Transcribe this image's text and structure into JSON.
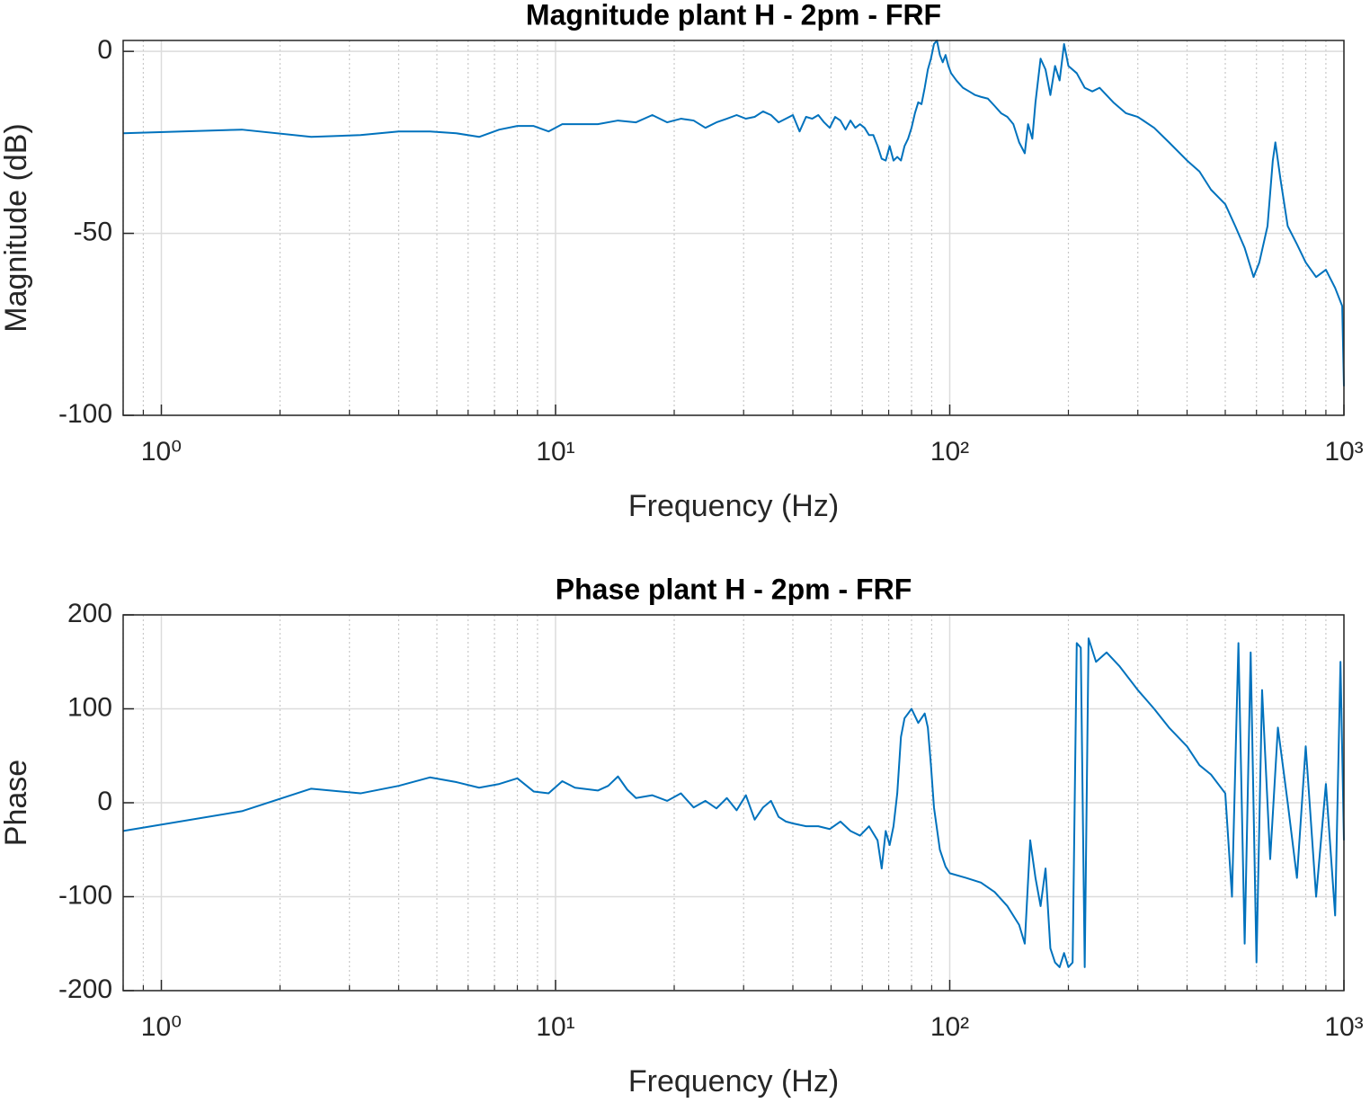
{
  "chart_data": [
    {
      "type": "line",
      "title": "Magnitude plant H - 2pm - FRF",
      "xlabel": "Frequency (Hz)",
      "ylabel": "Magnitude (dB)",
      "xscale": "log",
      "grid": true,
      "color": "#0072bd",
      "xlim": [
        0.8,
        1000
      ],
      "ylim": [
        -100,
        3
      ],
      "xticks": [
        {
          "value": 1,
          "label": "10⁰"
        },
        {
          "value": 10,
          "label": "10¹"
        },
        {
          "value": 100,
          "label": "10²"
        },
        {
          "value": 1000,
          "label": "10³"
        }
      ],
      "xminorticks": [
        0.8,
        0.9,
        2,
        3,
        4,
        5,
        6,
        7,
        8,
        9,
        20,
        30,
        40,
        50,
        60,
        70,
        80,
        90,
        200,
        300,
        400,
        500,
        600,
        700,
        800,
        900
      ],
      "yticks": [
        -100,
        -50,
        0
      ],
      "x": [
        0.8,
        1.6,
        2.4,
        3.2,
        4,
        4.8,
        5.6,
        6.4,
        7.2,
        8,
        8.8,
        9.6,
        10.4,
        11.2,
        12.8,
        14.4,
        16,
        17.6,
        19.2,
        20.8,
        22.4,
        24,
        25.6,
        27.2,
        28.8,
        30.4,
        32,
        33.6,
        35.2,
        36.8,
        38.4,
        40,
        41.6,
        43.2,
        44.8,
        46.4,
        48,
        49.6,
        51.2,
        52.8,
        54.4,
        56,
        57.6,
        59.2,
        60.8,
        62.4,
        64,
        65.6,
        67.2,
        68.8,
        70.4,
        72,
        73.6,
        75.2,
        76.8,
        78.4,
        80,
        81.6,
        83.2,
        84.8,
        86.4,
        88,
        89.6,
        91.2,
        92.8,
        94.4,
        96,
        97.6,
        99.2,
        100.8,
        104,
        108,
        112,
        116,
        120,
        125,
        130,
        135,
        140,
        145,
        150,
        155,
        158,
        162,
        165,
        170,
        175,
        180,
        185,
        190,
        195,
        200,
        210,
        220,
        230,
        240,
        260,
        280,
        300,
        330,
        360,
        400,
        430,
        460,
        500,
        530,
        560,
        590,
        610,
        640,
        660,
        670,
        690,
        720,
        760,
        800,
        850,
        900,
        950,
        990,
        1000
      ],
      "values": [
        -22.5,
        -21.5,
        -23.5,
        -23,
        -22,
        -22,
        -22.5,
        -23.5,
        -21.5,
        -20.5,
        -20.5,
        -22,
        -20,
        -20,
        -20,
        -19,
        -19.5,
        -17.5,
        -19.5,
        -18.5,
        -19,
        -21,
        -19.5,
        -18.5,
        -17.5,
        -18.5,
        -18,
        -16.5,
        -17.5,
        -19.5,
        -18.5,
        -17.5,
        -22,
        -18,
        -18.5,
        -17.5,
        -19.5,
        -21,
        -18,
        -19,
        -21.5,
        -19,
        -21,
        -20,
        -21,
        -23,
        -23,
        -26,
        -29.5,
        -30,
        -26,
        -30,
        -29,
        -30,
        -26,
        -24,
        -21,
        -17,
        -14,
        -14.5,
        -10,
        -5,
        -2,
        2,
        3,
        -1,
        -3,
        -1,
        -4,
        -6,
        -8,
        -10,
        -11,
        -12,
        -12.5,
        -13,
        -15,
        -17,
        -18,
        -20,
        -25,
        -28,
        -20,
        -24,
        -14,
        -2,
        -5,
        -12,
        -4,
        -8,
        2,
        -4,
        -6,
        -10,
        -11,
        -10,
        -14,
        -17,
        -18,
        -21,
        -25,
        -30,
        -33,
        -38,
        -42,
        -48,
        -54,
        -62,
        -58,
        -48,
        -30,
        -25,
        -35,
        -48,
        -53,
        -58,
        -62,
        -60,
        -65,
        -70,
        -92
      ]
    },
    {
      "type": "line",
      "title": "Phase plant H - 2pm - FRF",
      "xlabel": "Frequency (Hz)",
      "ylabel": "Phase",
      "xscale": "log",
      "grid": true,
      "color": "#0072bd",
      "xlim": [
        0.8,
        1000
      ],
      "ylim": [
        -200,
        200
      ],
      "xticks": [
        {
          "value": 1,
          "label": "10⁰"
        },
        {
          "value": 10,
          "label": "10¹"
        },
        {
          "value": 100,
          "label": "10²"
        },
        {
          "value": 1000,
          "label": "10³"
        }
      ],
      "xminorticks": [
        0.8,
        0.9,
        2,
        3,
        4,
        5,
        6,
        7,
        8,
        9,
        20,
        30,
        40,
        50,
        60,
        70,
        80,
        90,
        200,
        300,
        400,
        500,
        600,
        700,
        800,
        900
      ],
      "yticks": [
        -200,
        -100,
        0,
        100,
        200
      ],
      "x": [
        0.8,
        1.6,
        2.4,
        3.2,
        4,
        4.8,
        5.6,
        6.4,
        7.2,
        8,
        8.8,
        9.6,
        10.4,
        11.2,
        12.8,
        13.6,
        14.4,
        15.2,
        16,
        17.6,
        19.2,
        20.8,
        22.4,
        24,
        25.6,
        27.2,
        28.8,
        30.4,
        32,
        33.6,
        35.2,
        36.8,
        38.4,
        40,
        43.2,
        46.4,
        49.6,
        52.8,
        56,
        59.2,
        62.4,
        65.6,
        67.2,
        68.8,
        70.4,
        72,
        73.6,
        75.2,
        76.8,
        78.4,
        80,
        83.2,
        86.4,
        88,
        89.6,
        91.2,
        94.4,
        97.6,
        100,
        110,
        120,
        130,
        140,
        150,
        155,
        160,
        165,
        170,
        175,
        180,
        185,
        190,
        195,
        200,
        205,
        210,
        215,
        220,
        225,
        235,
        250,
        270,
        300,
        330,
        360,
        400,
        430,
        460,
        500,
        520,
        540,
        560,
        580,
        600,
        620,
        650,
        680,
        720,
        760,
        800,
        850,
        900,
        950,
        980,
        1000
      ],
      "values": [
        -30,
        -9,
        15,
        10,
        18,
        27,
        22,
        16,
        20,
        26,
        12,
        10,
        23,
        16,
        13,
        18,
        28,
        14,
        5,
        8,
        2,
        10,
        -5,
        2,
        -6,
        5,
        -8,
        8,
        -18,
        -5,
        2,
        -15,
        -20,
        -22,
        -25,
        -25,
        -28,
        -20,
        -30,
        -35,
        -25,
        -40,
        -70,
        -30,
        -45,
        -25,
        10,
        70,
        90,
        95,
        100,
        85,
        95,
        80,
        40,
        -5,
        -50,
        -68,
        -75,
        -80,
        -85,
        -95,
        -110,
        -130,
        -150,
        -40,
        -80,
        -110,
        -70,
        -155,
        -170,
        -175,
        -160,
        -175,
        -170,
        170,
        165,
        -175,
        175,
        150,
        160,
        145,
        120,
        100,
        80,
        60,
        40,
        30,
        10,
        -100,
        170,
        -150,
        160,
        -170,
        120,
        -60,
        80,
        0,
        -80,
        60,
        -100,
        20,
        -120,
        150,
        -40
      ]
    }
  ]
}
